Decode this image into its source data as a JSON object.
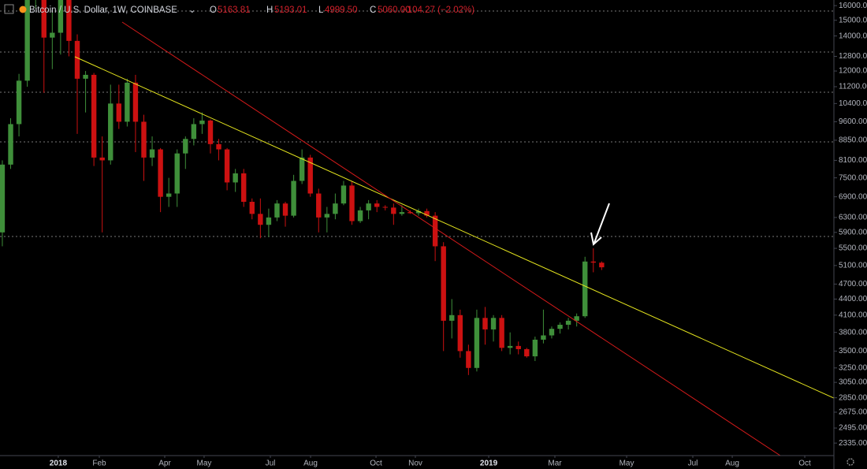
{
  "header": {
    "symbol": "Bitcoin / U.S. Dollar, 1W, COINBASE",
    "ohlc_keys": [
      "O",
      "H",
      "L",
      "C"
    ],
    "ohlc_labels": [
      "5163.81",
      "5193.01",
      "4999.50",
      "5060.00"
    ],
    "change": "−104.27 (−2.02%)"
  },
  "chart_data": {
    "type": "candlestick",
    "log_scale": true,
    "grid": false,
    "up_color": "#3f8f3a",
    "down_color": "#cc1111",
    "open": [
      5900,
      7950,
      9500,
      11500,
      17600,
      19100,
      13900,
      14200,
      16700,
      13700,
      11600,
      11800,
      8200,
      8100,
      10400,
      9600,
      11400,
      9600,
      8200,
      8500,
      6900,
      7000,
      8350,
      8900,
      9500,
      9650,
      8700,
      8500,
      7350,
      7650,
      6750,
      6400,
      6100,
      6300,
      6700,
      6350,
      7400,
      8200,
      7000,
      6300,
      6400,
      6700,
      7250,
      6200,
      6500,
      6700,
      6600,
      6580,
      6400,
      6450,
      6420,
      6480,
      6350,
      5550,
      4000,
      4100,
      3500,
      3250,
      4050,
      3850,
      4050,
      3550,
      3580,
      3530,
      3420,
      3680,
      3750,
      3860,
      3930,
      4000,
      4080,
      5190,
      5163.81
    ],
    "high": [
      8100,
      9750,
      11850,
      17800,
      19891,
      19200,
      15600,
      17250,
      16900,
      14100,
      12000,
      11900,
      9000,
      11300,
      11300,
      11600,
      11800,
      9900,
      9000,
      8550,
      7500,
      8500,
      9000,
      9750,
      10000,
      9700,
      8900,
      8550,
      7800,
      7800,
      6850,
      6850,
      6550,
      6800,
      6750,
      7600,
      8500,
      8300,
      7150,
      6600,
      7000,
      7400,
      7400,
      6600,
      6800,
      6800,
      6650,
      6700,
      6650,
      6500,
      6550,
      6550,
      6450,
      5650,
      4400,
      4200,
      3600,
      4200,
      4250,
      4100,
      4100,
      3800,
      3650,
      3550,
      3730,
      4200,
      3900,
      3970,
      4050,
      4130,
      5300,
      5500,
      5193.01
    ],
    "low": [
      5550,
      7800,
      9000,
      11200,
      15800,
      10900,
      12100,
      12900,
      12800,
      9100,
      10000,
      7900,
      5900,
      7950,
      9300,
      9400,
      8400,
      7400,
      7900,
      6450,
      6600,
      6600,
      7800,
      8650,
      9100,
      8350,
      8100,
      7100,
      7050,
      6600,
      6250,
      5750,
      5780,
      6200,
      6050,
      6300,
      7300,
      6900,
      5900,
      5900,
      6250,
      6650,
      6100,
      6150,
      6250,
      6450,
      6500,
      6100,
      6350,
      6400,
      6350,
      6300,
      5200,
      3500,
      3700,
      3400,
      3150,
      3200,
      3600,
      3650,
      3500,
      3450,
      3450,
      3400,
      3350,
      3620,
      3700,
      3780,
      3850,
      3900,
      4050,
      4950,
      4999.5
    ],
    "close": [
      7950,
      9500,
      11500,
      17600,
      19100,
      13900,
      14200,
      16700,
      13700,
      11600,
      11800,
      8200,
      8100,
      10400,
      9600,
      11400,
      9600,
      8200,
      8500,
      6900,
      7000,
      8350,
      8900,
      9500,
      9650,
      8700,
      8500,
      7350,
      7650,
      6750,
      6400,
      6100,
      6300,
      6700,
      6350,
      7400,
      8200,
      7000,
      6300,
      6400,
      6700,
      7250,
      6200,
      6500,
      6700,
      6600,
      6580,
      6400,
      6450,
      6420,
      6480,
      6350,
      5550,
      4000,
      4100,
      3500,
      3250,
      4050,
      3850,
      4050,
      3550,
      3580,
      3530,
      3420,
      3680,
      3750,
      3860,
      3930,
      4000,
      4080,
      5190,
      5165,
      5060
    ],
    "xlim": [
      -0.28,
      99.9
    ],
    "xticks": [
      {
        "value": 6.72,
        "label": "2018"
      },
      {
        "value": 11.65,
        "label": "Feb"
      },
      {
        "value": 19.51,
        "label": "Apr"
      },
      {
        "value": 24.24,
        "label": "May"
      },
      {
        "value": 32.2,
        "label": "Jul"
      },
      {
        "value": 37.03,
        "label": "Aug"
      },
      {
        "value": 44.89,
        "label": "Oct"
      },
      {
        "value": 49.62,
        "label": "Nov"
      },
      {
        "value": 58.43,
        "label": "2019"
      },
      {
        "value": 66.38,
        "label": "Mar"
      },
      {
        "value": 75.0,
        "label": "May"
      },
      {
        "value": 82.95,
        "label": "Jul"
      },
      {
        "value": 87.69,
        "label": "Aug"
      },
      {
        "value": 96.4,
        "label": "Oct"
      }
    ],
    "ylim": [
      2210,
      16400
    ],
    "yticks": [
      {
        "value": 16000,
        "label": "16000.00"
      },
      {
        "value": 15000,
        "label": "15000.00"
      },
      {
        "value": 14000,
        "label": "14000.00"
      },
      {
        "value": 12800,
        "label": "12800.00"
      },
      {
        "value": 12000,
        "label": "12000.00"
      },
      {
        "value": 11200,
        "label": "11200.00"
      },
      {
        "value": 10400,
        "label": "10400.00"
      },
      {
        "value": 9600,
        "label": "9600.00"
      },
      {
        "value": 8850,
        "label": "8850.00"
      },
      {
        "value": 8100,
        "label": "8100.00"
      },
      {
        "value": 7500,
        "label": "7500.00"
      },
      {
        "value": 6900,
        "label": "6900.00"
      },
      {
        "value": 6300,
        "label": "6300.00"
      },
      {
        "value": 5900,
        "label": "5900.00"
      },
      {
        "value": 5500,
        "label": "5500.00"
      },
      {
        "value": 5100,
        "label": "5100.00"
      },
      {
        "value": 4700,
        "label": "4700.00"
      },
      {
        "value": 4400,
        "label": "4400.00"
      },
      {
        "value": 4100,
        "label": "4100.00"
      },
      {
        "value": 3800,
        "label": "3800.00"
      },
      {
        "value": 3500,
        "label": "3500.00"
      },
      {
        "value": 3250,
        "label": "3250.00"
      },
      {
        "value": 3050,
        "label": "3050.00"
      },
      {
        "value": 2850,
        "label": "2850.00"
      },
      {
        "value": 2675,
        "label": "2675.00"
      },
      {
        "value": 2495,
        "label": "2495.00"
      },
      {
        "value": 2335,
        "label": "2335.00"
      }
    ]
  }
}
